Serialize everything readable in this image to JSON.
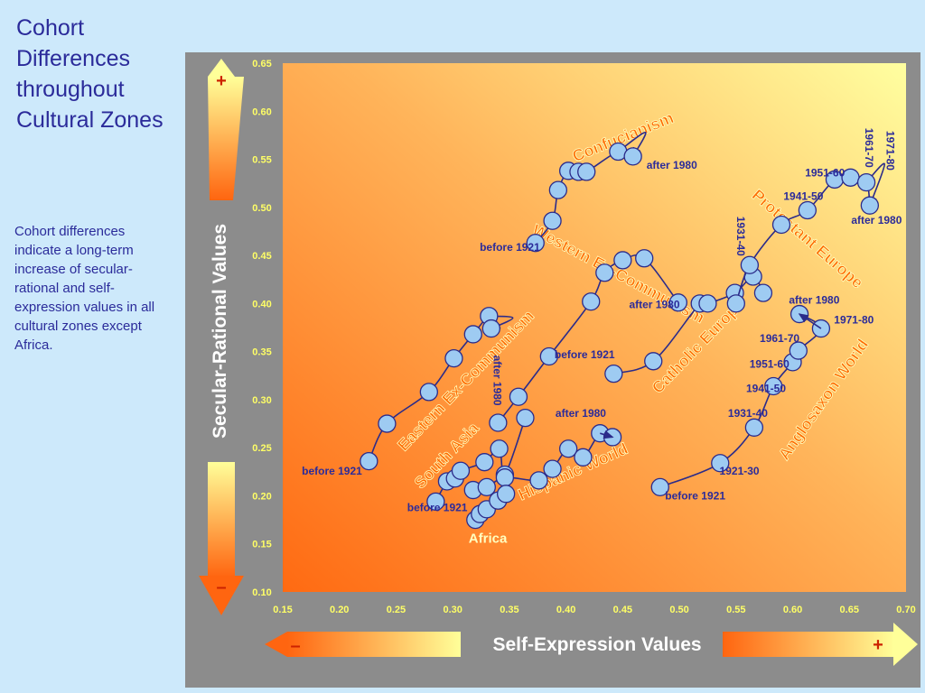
{
  "slide": {
    "title": "Cohort Differences throughout Cultural Zones",
    "description": "Cohort differences indicate a long-term increase of secular-rational and self-expression values in all cultural zones except Africa."
  },
  "colors": {
    "background": "#cde9fb",
    "panel": "#8c8c8c",
    "text": "#2b2b9a",
    "line": "#2b2b8a",
    "point": "#9ecbf2",
    "zone_label": "#ff6a00",
    "tick_label": "#ffff66"
  },
  "chart_data": {
    "type": "line",
    "ylabel": "Secular-Rational Values",
    "xlabel": "Self-Expression Values",
    "xlim": [
      0.15,
      0.7
    ],
    "ylim": [
      0.1,
      0.65
    ],
    "xticks": [
      "0.15",
      "0.20",
      "0.25",
      "0.30",
      "0.35",
      "0.40",
      "0.45",
      "0.50",
      "0.55",
      "0.60",
      "0.65",
      "0.70"
    ],
    "yticks": [
      "0.65",
      "0.60",
      "0.55",
      "0.50",
      "0.45",
      "0.40",
      "0.35",
      "0.30",
      "0.25",
      "0.20",
      "0.15",
      "0.10"
    ],
    "axis_arrows": {
      "plus": "+",
      "minus": "–"
    },
    "series": [
      {
        "name": "Confucianism",
        "label_angle": -22,
        "label_at": [
          0.452,
          0.568
        ],
        "points": [
          [
            0.373,
            0.463
          ],
          [
            0.388,
            0.486
          ],
          [
            0.393,
            0.518
          ],
          [
            0.402,
            0.538
          ],
          [
            0.411,
            0.537
          ],
          [
            0.418,
            0.537
          ],
          [
            0.446,
            0.558
          ],
          [
            0.459,
            0.553
          ]
        ],
        "arrow_to": [
          0.459,
          0.553
        ],
        "loop": [
          [
            0.446,
            0.558
          ],
          [
            0.47,
            0.578
          ],
          [
            0.459,
            0.553
          ]
        ]
      },
      {
        "name": "Western Ex-Communism",
        "label_angle": 28,
        "label_at": [
          0.444,
          0.426
        ],
        "points": [
          [
            0.34,
            0.276
          ],
          [
            0.358,
            0.303
          ],
          [
            0.385,
            0.345
          ],
          [
            0.422,
            0.402
          ],
          [
            0.434,
            0.432
          ],
          [
            0.45,
            0.445
          ],
          [
            0.469,
            0.447
          ],
          [
            0.499,
            0.401
          ]
        ]
      },
      {
        "name": "Eastern Ex-Communism",
        "label_angle": -46,
        "label_at": [
          0.315,
          0.316
        ],
        "points": [
          [
            0.226,
            0.236
          ],
          [
            0.242,
            0.275
          ],
          [
            0.279,
            0.308
          ],
          [
            0.301,
            0.343
          ],
          [
            0.318,
            0.368
          ],
          [
            0.332,
            0.387
          ],
          [
            0.334,
            0.374
          ]
        ],
        "loop": [
          [
            0.332,
            0.387
          ],
          [
            0.353,
            0.385
          ],
          [
            0.334,
            0.374
          ]
        ]
      },
      {
        "name": "South Asia",
        "label_angle": -46,
        "label_at": [
          0.298,
          0.238
        ],
        "points": [
          [
            0.285,
            0.194
          ],
          [
            0.295,
            0.215
          ],
          [
            0.302,
            0.218
          ],
          [
            0.307,
            0.226
          ],
          [
            0.328,
            0.235
          ],
          [
            0.341,
            0.249
          ],
          [
            0.346,
            0.222
          ],
          [
            0.364,
            0.281
          ]
        ]
      },
      {
        "name": "Hispanic World",
        "label_angle": -24,
        "label_at": [
          0.408,
          0.22
        ],
        "points": [
          [
            0.318,
            0.206
          ],
          [
            0.33,
            0.209
          ],
          [
            0.346,
            0.219
          ],
          [
            0.376,
            0.216
          ],
          [
            0.388,
            0.228
          ],
          [
            0.402,
            0.249
          ],
          [
            0.415,
            0.24
          ],
          [
            0.43,
            0.265
          ],
          [
            0.441,
            0.261
          ]
        ],
        "arrow_to": [
          0.441,
          0.261
        ]
      },
      {
        "name": "Africa",
        "label_angle": 0,
        "label_at": [
          0.331,
          0.151
        ],
        "points": [
          [
            0.32,
            0.175
          ],
          [
            0.324,
            0.181
          ],
          [
            0.33,
            0.186
          ],
          [
            0.34,
            0.195
          ],
          [
            0.347,
            0.202
          ]
        ]
      },
      {
        "name": "Catholic Europe",
        "label_angle": -46,
        "label_at": [
          0.52,
          0.352
        ],
        "points": [
          [
            0.442,
            0.327
          ],
          [
            0.477,
            0.34
          ],
          [
            0.518,
            0.4
          ],
          [
            0.525,
            0.4
          ],
          [
            0.549,
            0.411
          ],
          [
            0.565,
            0.428
          ],
          [
            0.574,
            0.411
          ]
        ]
      },
      {
        "name": "Protestant Europe",
        "label_angle": 41,
        "label_at": [
          0.61,
          0.463
        ],
        "points": [
          [
            0.55,
            0.4
          ],
          [
            0.562,
            0.44
          ],
          [
            0.59,
            0.482
          ],
          [
            0.613,
            0.497
          ],
          [
            0.637,
            0.529
          ],
          [
            0.651,
            0.531
          ],
          [
            0.665,
            0.526
          ],
          [
            0.668,
            0.502
          ]
        ],
        "loop": [
          [
            0.665,
            0.526
          ],
          [
            0.681,
            0.545
          ],
          [
            0.668,
            0.502
          ]
        ]
      },
      {
        "name": "Anglosaxon World",
        "label_angle": -55,
        "label_at": [
          0.631,
          0.297
        ],
        "points": [
          [
            0.483,
            0.209
          ],
          [
            0.536,
            0.234
          ],
          [
            0.566,
            0.271
          ],
          [
            0.583,
            0.314
          ],
          [
            0.6,
            0.339
          ],
          [
            0.605,
            0.351
          ],
          [
            0.625,
            0.374
          ],
          [
            0.606,
            0.389
          ]
        ],
        "arrow_to": [
          0.606,
          0.389
        ]
      }
    ],
    "annotations": [
      {
        "text": "before 1921",
        "at": [
          0.377,
          0.455
        ],
        "anchor": "end"
      },
      {
        "text": "after 1980",
        "at": [
          0.471,
          0.54
        ],
        "anchor": "start"
      },
      {
        "text": "after 1980",
        "at": [
          0.478,
          0.395
        ],
        "anchor": "middle"
      },
      {
        "text": "before 1921",
        "at": [
          0.443,
          0.343
        ],
        "anchor": "end"
      },
      {
        "text": "after 1980",
        "at": [
          0.336,
          0.32
        ],
        "anchor": "middle",
        "rotate": 90
      },
      {
        "text": "before 1921",
        "at": [
          0.22,
          0.222
        ],
        "anchor": "end"
      },
      {
        "text": "before 1921",
        "at": [
          0.313,
          0.184
        ],
        "anchor": "end"
      },
      {
        "text": "after 1980",
        "at": [
          0.413,
          0.282
        ],
        "anchor": "middle"
      },
      {
        "text": "before 1921",
        "at": [
          0.514,
          0.196
        ],
        "anchor": "middle"
      },
      {
        "text": "1921-30",
        "at": [
          0.553,
          0.222
        ],
        "anchor": "middle"
      },
      {
        "text": "1931-40",
        "at": [
          0.578,
          0.282
        ],
        "anchor": "end"
      },
      {
        "text": "1941-50",
        "at": [
          0.594,
          0.308
        ],
        "anchor": "end"
      },
      {
        "text": "1951-60",
        "at": [
          0.597,
          0.333
        ],
        "anchor": "end"
      },
      {
        "text": "1961-70",
        "at": [
          0.606,
          0.36
        ],
        "anchor": "end"
      },
      {
        "text": "1971-80",
        "at": [
          0.654,
          0.379
        ],
        "anchor": "middle"
      },
      {
        "text": "after 1980",
        "at": [
          0.619,
          0.4
        ],
        "anchor": "middle"
      },
      {
        "text": "1931-40",
        "at": [
          0.551,
          0.47
        ],
        "anchor": "middle",
        "rotate": 90
      },
      {
        "text": "1941-50",
        "at": [
          0.627,
          0.508
        ],
        "anchor": "end"
      },
      {
        "text": "1951-60",
        "at": [
          0.646,
          0.532
        ],
        "anchor": "end"
      },
      {
        "text": "1961-70",
        "at": [
          0.664,
          0.562
        ],
        "anchor": "middle",
        "rotate": 90
      },
      {
        "text": "1971-80",
        "at": [
          0.683,
          0.559
        ],
        "anchor": "middle",
        "rotate": 90
      },
      {
        "text": "after 1980",
        "at": [
          0.674,
          0.483
        ],
        "anchor": "middle"
      }
    ]
  }
}
